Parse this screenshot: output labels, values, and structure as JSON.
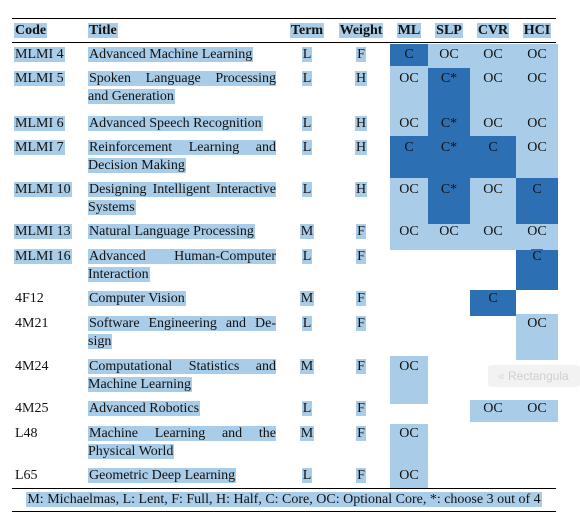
{
  "headers": {
    "code": "Code",
    "title": "Title",
    "term": "Term",
    "weight": "Weight",
    "ml": "ML",
    "slp": "SLP",
    "cvr": "CVR",
    "hci": "HCI"
  },
  "rows": [
    {
      "code": "MLMI 4",
      "title": "Advanced Machine Learning",
      "term": "L",
      "weight": "F",
      "ml": "C",
      "slp": "OC",
      "cvr": "OC",
      "hci": "OC"
    },
    {
      "code": "MLMI 5",
      "title": "Spoken Language Processing and Generation",
      "term": "L",
      "weight": "H",
      "ml": "OC",
      "slp": "C*",
      "cvr": "OC",
      "hci": "OC"
    },
    {
      "code": "MLMI 6",
      "title": "Advanced Speech Recognition",
      "term": "L",
      "weight": "H",
      "ml": "OC",
      "slp": "C*",
      "cvr": "OC",
      "hci": "OC"
    },
    {
      "code": "MLMI 7",
      "title": "Reinforcement Learning and Decision Making",
      "term": "L",
      "weight": "H",
      "ml": "C",
      "slp": "C*",
      "cvr": "C",
      "hci": "OC"
    },
    {
      "code": "MLMI 10",
      "title": "Designing Intelligent Interactive Systems",
      "term": "L",
      "weight": "H",
      "ml": "OC",
      "slp": "C*",
      "cvr": "OC",
      "hci": "C"
    },
    {
      "code": "MLMI 13",
      "title": "Natural Language Processing",
      "term": "M",
      "weight": "F",
      "ml": "OC",
      "slp": "OC",
      "cvr": "OC",
      "hci": "OC"
    },
    {
      "code": "MLMI 16",
      "title": "Advanced Human-Computer Interaction",
      "term": "L",
      "weight": "F",
      "ml": "",
      "slp": "",
      "cvr": "",
      "hci": "C"
    },
    {
      "code": "4F12",
      "title": "Computer Vision",
      "term": "M",
      "weight": "F",
      "ml": "",
      "slp": "",
      "cvr": "C",
      "hci": ""
    },
    {
      "code": "4M21",
      "title": "Software Engineering and De-sign",
      "term": "L",
      "weight": "F",
      "ml": "",
      "slp": "",
      "cvr": "",
      "hci": "OC"
    },
    {
      "code": "4M24",
      "title": "Computational Statistics and Machine Learning",
      "term": "M",
      "weight": "F",
      "ml": "OC",
      "slp": "",
      "cvr": "",
      "hci": ""
    },
    {
      "code": "4M25",
      "title": "Advanced Robotics",
      "term": "L",
      "weight": "F",
      "ml": "",
      "slp": "",
      "cvr": "OC",
      "hci": "OC"
    },
    {
      "code": "L48",
      "title": "Machine Learning and the Physical World",
      "term": "M",
      "weight": "F",
      "ml": "OC",
      "slp": "",
      "cvr": "",
      "hci": ""
    },
    {
      "code": "L65",
      "title": "Geometric Deep Learning",
      "term": "L",
      "weight": "F",
      "ml": "OC",
      "slp": "",
      "cvr": "",
      "hci": ""
    }
  ],
  "footer": "M: Michaelmas, L: Lent, F: Full, H: Half, C: Core, OC: Optional Core, *: choose 3 out of 4",
  "ghost_label": "Rectangula",
  "colors": {
    "light": "#a9cde8",
    "dark": "#2c6fb3"
  }
}
